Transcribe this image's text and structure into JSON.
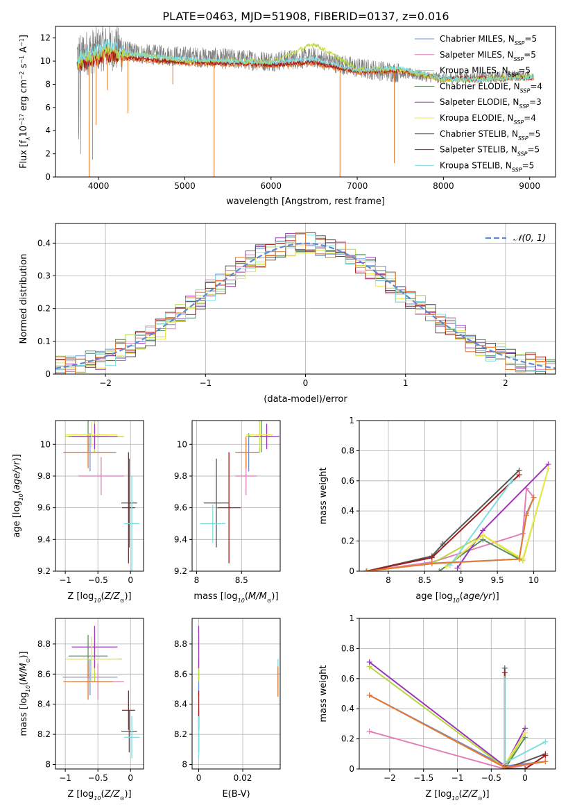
{
  "figure": {
    "title": "PLATE=0463, MJD=51908, FIBERID=0137, z=0.016",
    "colors": {
      "Chabrier MILES": "#6a8fd8",
      "Salpeter MILES": "#e27fb8",
      "Kroupa MILES": "#b7d83a",
      "Chabrier ELODIE": "#5c8f5c",
      "Salpeter ELODIE": "#9a36b8",
      "Kroupa ELODIE": "#e8e84a",
      "Chabrier STELIB": "#555555",
      "Salpeter STELIB": "#a11c1c",
      "Kroupa STELIB": "#7fdde0",
      "Orange": "#e8782e",
      "Gray": "#808080",
      "Normal": "#5b8bd4"
    }
  },
  "chart_data": [
    {
      "id": "spectrum",
      "type": "line",
      "xlabel": "wavelength [Angstrom, rest frame]",
      "ylabel": "Flux [fλ10⁻¹⁷ erg cm⁻² s⁻¹ A⁻¹]",
      "xlim": [
        3500,
        9300
      ],
      "ylim": [
        0,
        13
      ],
      "xticks": [
        4000,
        5000,
        6000,
        7000,
        8000,
        9000
      ],
      "yticks": [
        0,
        2,
        4,
        6,
        8,
        10,
        12
      ],
      "grid": false,
      "legend_position": "top-right",
      "legend": [
        "Chabrier MILES, N_SSP=5",
        "Salpeter MILES, N_SSP=5",
        "Kroupa MILES, N_SSP=5",
        "Chabrier ELODIE, N_SSP=4",
        "Salpeter ELODIE, N_SSP=3",
        "Kroupa ELODIE, N_SSP=4",
        "Chabrier STELIB, N_SSP=5",
        "Salpeter STELIB, N_SSP=5",
        "Kroupa STELIB, N_SSP=5"
      ],
      "legend_display": [
        {
          "name": "Chabrier MILES, N",
          "sub": "SSP",
          "tail": "=5"
        },
        {
          "name": "Salpeter MILES, N",
          "sub": "SSP",
          "tail": "=5"
        },
        {
          "name": "Kroupa MILES, N",
          "sub": "SSP",
          "tail": "=5"
        },
        {
          "name": "Chabrier ELODIE, N",
          "sub": "SSP",
          "tail": "=4"
        },
        {
          "name": "Salpeter ELODIE, N",
          "sub": "SSP",
          "tail": "=3"
        },
        {
          "name": "Kroupa ELODIE, N",
          "sub": "SSP",
          "tail": "=4"
        },
        {
          "name": "Chabrier STELIB, N",
          "sub": "SSP",
          "tail": "=5"
        },
        {
          "name": "Salpeter STELIB, N",
          "sub": "SSP",
          "tail": "=5"
        },
        {
          "name": "Kroupa STELIB, N",
          "sub": "SSP",
          "tail": "=5"
        }
      ],
      "data_wavelength_range": [
        3750,
        9050
      ],
      "continuum_profile": {
        "x": [
          3750,
          3900,
          4100,
          4300,
          4500,
          5000,
          5500,
          6000,
          6500,
          7000,
          7500,
          8000,
          8500,
          9000
        ],
        "y": [
          10.5,
          10.8,
          11.2,
          10.9,
          10.6,
          10.4,
          10.2,
          10.0,
          10.3,
          9.4,
          9.0,
          8.5,
          8.6,
          8.8
        ]
      },
      "models": {
        "x": [
          3750,
          3900,
          4100,
          4300,
          4500,
          5000,
          5500,
          6000,
          6500,
          7000,
          7500,
          8000,
          8500,
          9000
        ],
        "Kroupa STELIB": [
          10.3,
          10.7,
          11.4,
          10.8,
          10.5,
          10.2,
          10.0,
          9.9,
          10.2,
          9.2,
          9.4,
          8.5,
          8.4,
          8.6
        ],
        "Kroupa MILES": [
          9.8,
          10.4,
          10.9,
          10.5,
          10.6,
          10.0,
          10.1,
          9.9,
          11.5,
          9.3,
          9.3,
          8.4,
          8.5,
          8.7
        ],
        "Salpeter STELIB": [
          9.6,
          10.0,
          10.5,
          10.3,
          10.2,
          9.9,
          9.8,
          9.7,
          9.9,
          9.1,
          9.2,
          8.5,
          8.5,
          8.6
        ],
        "Orange": [
          9.5,
          9.9,
          10.4,
          10.2,
          10.1,
          9.8,
          9.7,
          9.6,
          9.8,
          9.0,
          9.1,
          8.4,
          8.4,
          8.5
        ]
      }
    },
    {
      "id": "residuals",
      "type": "line",
      "xlabel": "(data-model)/error",
      "ylabel": "Normed distribution",
      "xlim": [
        -2.5,
        2.5
      ],
      "ylim": [
        0,
        0.46
      ],
      "xticks": [
        -2,
        -1,
        0,
        1,
        2
      ],
      "yticks": [
        0.0,
        0.1,
        0.2,
        0.3,
        0.4
      ],
      "grid": true,
      "legend_position": "top-right",
      "legend": [
        "𝒩(0, 1)"
      ],
      "bin_width": 0.1,
      "bins_from": -2.5,
      "bins_to": 2.5
    },
    {
      "id": "age_vs_Z",
      "type": "scatter",
      "xlabel": "Z [log₁₀(Z/Z⊙)]",
      "ylabel": "age  [log₁₀(age/yr)]",
      "xlim": [
        -1.15,
        0.2
      ],
      "ylim": [
        9.2,
        10.15
      ],
      "xticks": [
        -1.0,
        -0.5,
        0.0
      ],
      "yticks": [
        9.2,
        9.4,
        9.6,
        9.8,
        10.0
      ],
      "grid": true,
      "errorbars": [
        {
          "series": "Chabrier MILES",
          "x": -0.62,
          "xerr": 0.4,
          "y": 9.95,
          "yerr": 0.12
        },
        {
          "series": "Salpeter MILES",
          "x": -0.45,
          "xerr": 0.35,
          "y": 9.8,
          "yerr": 0.12
        },
        {
          "series": "Kroupa MILES",
          "x": -0.55,
          "xerr": 0.45,
          "y": 10.05,
          "yerr": 0.1
        },
        {
          "series": "Chabrier ELODIE",
          "x": -0.65,
          "xerr": 0.3,
          "y": 10.05,
          "yerr": 0.1
        },
        {
          "series": "Salpeter ELODIE",
          "x": -0.55,
          "xerr": 0.35,
          "y": 10.05,
          "yerr": 0.08
        },
        {
          "series": "Kroupa ELODIE",
          "x": -0.6,
          "xerr": 0.4,
          "y": 10.06,
          "yerr": 0.08
        },
        {
          "series": "Chabrier STELIB",
          "x": -0.02,
          "xerr": 0.12,
          "y": 9.63,
          "yerr": 0.28
        },
        {
          "series": "Salpeter STELIB",
          "x": -0.03,
          "xerr": 0.1,
          "y": 9.6,
          "yerr": 0.35
        },
        {
          "series": "Kroupa STELIB",
          "x": 0.02,
          "xerr": 0.12,
          "y": 9.5,
          "yerr": 0.3
        },
        {
          "series": "Orange",
          "x": -0.65,
          "xerr": 0.38,
          "y": 9.95,
          "yerr": 0.1
        }
      ]
    },
    {
      "id": "age_vs_mass",
      "type": "scatter",
      "xlabel": "mass [log₁₀(M/M⊙)]",
      "xlim": [
        7.95,
        8.93
      ],
      "ylim": [
        9.2,
        10.15
      ],
      "xticks": [
        8.0,
        8.5
      ],
      "yticks": [
        9.2,
        9.4,
        9.6,
        9.8,
        10.0
      ],
      "grid": true,
      "errorbars": [
        {
          "series": "Chabrier MILES",
          "x": 8.58,
          "xerr": 0.12,
          "y": 9.95,
          "yerr": 0.12
        },
        {
          "series": "Salpeter MILES",
          "x": 8.55,
          "xerr": 0.12,
          "y": 9.8,
          "yerr": 0.12
        },
        {
          "series": "Kroupa MILES",
          "x": 8.7,
          "xerr": 0.15,
          "y": 10.05,
          "yerr": 0.1
        },
        {
          "series": "Chabrier ELODIE",
          "x": 8.72,
          "xerr": 0.14,
          "y": 10.05,
          "yerr": 0.1
        },
        {
          "series": "Salpeter ELODIE",
          "x": 8.78,
          "xerr": 0.14,
          "y": 10.05,
          "yerr": 0.08
        },
        {
          "series": "Kroupa ELODIE",
          "x": 8.7,
          "xerr": 0.15,
          "y": 10.06,
          "yerr": 0.08
        },
        {
          "series": "Chabrier STELIB",
          "x": 8.22,
          "xerr": 0.14,
          "y": 9.63,
          "yerr": 0.28
        },
        {
          "series": "Salpeter STELIB",
          "x": 8.36,
          "xerr": 0.13,
          "y": 9.6,
          "yerr": 0.35
        },
        {
          "series": "Kroupa STELIB",
          "x": 8.18,
          "xerr": 0.14,
          "y": 9.5,
          "yerr": 0.12
        },
        {
          "series": "Orange",
          "x": 8.55,
          "xerr": 0.12,
          "y": 9.95,
          "yerr": 0.1
        }
      ]
    },
    {
      "id": "mass_weight_vs_age",
      "type": "line",
      "xlabel": "age  [log₁₀(age/yr)]",
      "ylabel": "mass weight",
      "xlim": [
        7.6,
        10.3
      ],
      "ylim": [
        0,
        1.0
      ],
      "xticks": [
        8.0,
        8.5,
        9.0,
        9.5,
        10.0
      ],
      "yticks": [
        0.0,
        0.2,
        0.4,
        0.6,
        0.8,
        1.0
      ],
      "grid": true,
      "series": [
        {
          "series": "Chabrier MILES",
          "x": [
            7.7,
            8.5,
            9.8,
            9.9,
            10.0
          ],
          "y": [
            0.0,
            0.05,
            0.08,
            0.38,
            0.49
          ]
        },
        {
          "series": "Salpeter MILES",
          "x": [
            7.7,
            8.6,
            9.85,
            9.9,
            10.0
          ],
          "y": [
            0.0,
            0.06,
            0.25,
            0.55,
            0.49
          ]
        },
        {
          "series": "Kroupa MILES",
          "x": [
            7.7,
            8.6,
            9.3,
            9.85,
            10.2
          ],
          "y": [
            0.0,
            0.05,
            0.24,
            0.07,
            0.68
          ]
        },
        {
          "series": "Chabrier ELODIE",
          "x": [
            8.7,
            9.3,
            9.8
          ],
          "y": [
            0.0,
            0.21,
            0.08
          ]
        },
        {
          "series": "Salpeter ELODIE",
          "x": [
            8.95,
            9.3,
            10.2
          ],
          "y": [
            0.02,
            0.27,
            0.71
          ]
        },
        {
          "series": "Kroupa ELODIE",
          "x": [
            8.8,
            9.3,
            9.85,
            10.2
          ],
          "y": [
            0.03,
            0.24,
            0.08,
            0.68
          ]
        },
        {
          "series": "Chabrier STELIB",
          "x": [
            7.7,
            8.6,
            8.75,
            9.8
          ],
          "y": [
            0.0,
            0.1,
            0.18,
            0.67
          ]
        },
        {
          "series": "Salpeter STELIB",
          "x": [
            7.7,
            8.6,
            9.8
          ],
          "y": [
            0.0,
            0.09,
            0.64
          ]
        },
        {
          "series": "Kroupa STELIB",
          "x": [
            8.85,
            9.7
          ],
          "y": [
            0.04,
            0.6
          ]
        },
        {
          "series": "Orange",
          "x": [
            7.7,
            8.6,
            9.8,
            9.9,
            10.0
          ],
          "y": [
            0.0,
            0.05,
            0.08,
            0.37,
            0.49
          ]
        }
      ]
    },
    {
      "id": "mass_vs_Z",
      "type": "scatter",
      "xlabel": "Z [log₁₀(Z/Z⊙)]",
      "ylabel": "mass [log₁₀(M/M⊙)]",
      "xlim": [
        -1.15,
        0.2
      ],
      "ylim": [
        7.97,
        8.97
      ],
      "xticks": [
        -1.0,
        -0.5,
        0.0
      ],
      "yticks": [
        8.0,
        8.2,
        8.4,
        8.6,
        8.8
      ],
      "grid": true,
      "errorbars": [
        {
          "series": "Chabrier MILES",
          "x": -0.62,
          "xerr": 0.42,
          "y": 8.58,
          "yerr": 0.12
        },
        {
          "series": "Salpeter MILES",
          "x": -0.5,
          "xerr": 0.4,
          "y": 8.55,
          "yerr": 0.12
        },
        {
          "series": "Kroupa MILES",
          "x": -0.55,
          "xerr": 0.42,
          "y": 8.7,
          "yerr": 0.15
        },
        {
          "series": "Chabrier ELODIE",
          "x": -0.65,
          "xerr": 0.3,
          "y": 8.72,
          "yerr": 0.14
        },
        {
          "series": "Salpeter ELODIE",
          "x": -0.55,
          "xerr": 0.35,
          "y": 8.78,
          "yerr": 0.14
        },
        {
          "series": "Kroupa ELODIE",
          "x": -0.6,
          "xerr": 0.4,
          "y": 8.7,
          "yerr": 0.15
        },
        {
          "series": "Chabrier STELIB",
          "x": -0.02,
          "xerr": 0.12,
          "y": 8.22,
          "yerr": 0.14
        },
        {
          "series": "Salpeter STELIB",
          "x": -0.03,
          "xerr": 0.1,
          "y": 8.36,
          "yerr": 0.13
        },
        {
          "series": "Kroupa STELIB",
          "x": 0.02,
          "xerr": 0.12,
          "y": 8.18,
          "yerr": 0.14
        },
        {
          "series": "Orange",
          "x": -0.65,
          "xerr": 0.38,
          "y": 8.55,
          "yerr": 0.12
        }
      ]
    },
    {
      "id": "mass_vs_ebv",
      "type": "scatter",
      "xlabel": "E(B-V)",
      "xlim": [
        -0.003,
        0.037
      ],
      "ylim": [
        7.97,
        8.97
      ],
      "xticks": [
        0.0,
        0.02
      ],
      "yticks": [
        8.0,
        8.2,
        8.4,
        8.6,
        8.8
      ],
      "grid": true,
      "errorbars": [
        {
          "series": "Chabrier MILES",
          "x": 0.0,
          "xerr": 0,
          "y": 8.58,
          "yerr": 0.12
        },
        {
          "series": "Kroupa MILES",
          "x": 0.0,
          "xerr": 0,
          "y": 8.7,
          "yerr": 0.15
        },
        {
          "series": "Salpeter ELODIE",
          "x": 0.0,
          "xerr": 0,
          "y": 8.78,
          "yerr": 0.14
        },
        {
          "series": "Chabrier STELIB",
          "x": 0.0,
          "xerr": 0,
          "y": 8.22,
          "yerr": 0.14
        },
        {
          "series": "Salpeter STELIB",
          "x": 0.0,
          "xerr": 0,
          "y": 8.36,
          "yerr": 0.13
        },
        {
          "series": "Kroupa STELIB",
          "x": 0.0,
          "xerr": 0,
          "y": 8.18,
          "yerr": 0.14
        },
        {
          "series": "Kroupa STELIB",
          "x": 0.036,
          "xerr": 0,
          "y": 8.6,
          "yerr": 0.1
        },
        {
          "series": "Orange",
          "x": 0.036,
          "xerr": 0,
          "y": 8.55,
          "yerr": 0.1
        }
      ]
    },
    {
      "id": "mass_weight_vs_Z",
      "type": "line",
      "xlabel": "Z [log₁₀(Z/Z⊙)]",
      "ylabel": "mass weight",
      "xlim": [
        -2.45,
        0.45
      ],
      "ylim": [
        0,
        1.0
      ],
      "xticks": [
        -2.0,
        -1.5,
        -1.0,
        -0.5,
        0.0
      ],
      "yticks": [
        0.0,
        0.2,
        0.4,
        0.6,
        0.8,
        1.0
      ],
      "grid": true,
      "series": [
        {
          "series": "Chabrier MILES",
          "x": [
            -2.3,
            -0.3,
            0.3
          ],
          "y": [
            0.49,
            0.02,
            0.05
          ]
        },
        {
          "series": "Salpeter MILES",
          "x": [
            -2.3,
            -0.3,
            0.3
          ],
          "y": [
            0.25,
            0.0,
            0.05
          ]
        },
        {
          "series": "Kroupa MILES",
          "x": [
            -2.3,
            -0.3,
            0.0
          ],
          "y": [
            0.68,
            0.01,
            0.24
          ]
        },
        {
          "series": "Chabrier ELODIE",
          "x": [
            -0.3,
            0.0
          ],
          "y": [
            0.0,
            0.21
          ]
        },
        {
          "series": "Salpeter ELODIE",
          "x": [
            -2.3,
            -0.3,
            0.0
          ],
          "y": [
            0.71,
            0.02,
            0.27
          ]
        },
        {
          "series": "Kroupa ELODIE",
          "x": [
            -0.3,
            0.0
          ],
          "y": [
            0.03,
            0.24
          ]
        },
        {
          "series": "Chabrier STELIB",
          "x": [
            -0.3,
            -0.3,
            0.3
          ],
          "y": [
            0.67,
            0.0,
            0.1
          ]
        },
        {
          "series": "Salpeter STELIB",
          "x": [
            -0.3,
            -0.3,
            0.0,
            0.3
          ],
          "y": [
            0.64,
            0.0,
            0.0,
            0.09
          ]
        },
        {
          "series": "Kroupa STELIB",
          "x": [
            -0.3,
            -0.3,
            0.3
          ],
          "y": [
            0.6,
            0.04,
            0.18
          ]
        },
        {
          "series": "Orange",
          "x": [
            -2.3,
            -0.3,
            0.3
          ],
          "y": [
            0.49,
            0.01,
            0.05
          ]
        }
      ]
    }
  ]
}
